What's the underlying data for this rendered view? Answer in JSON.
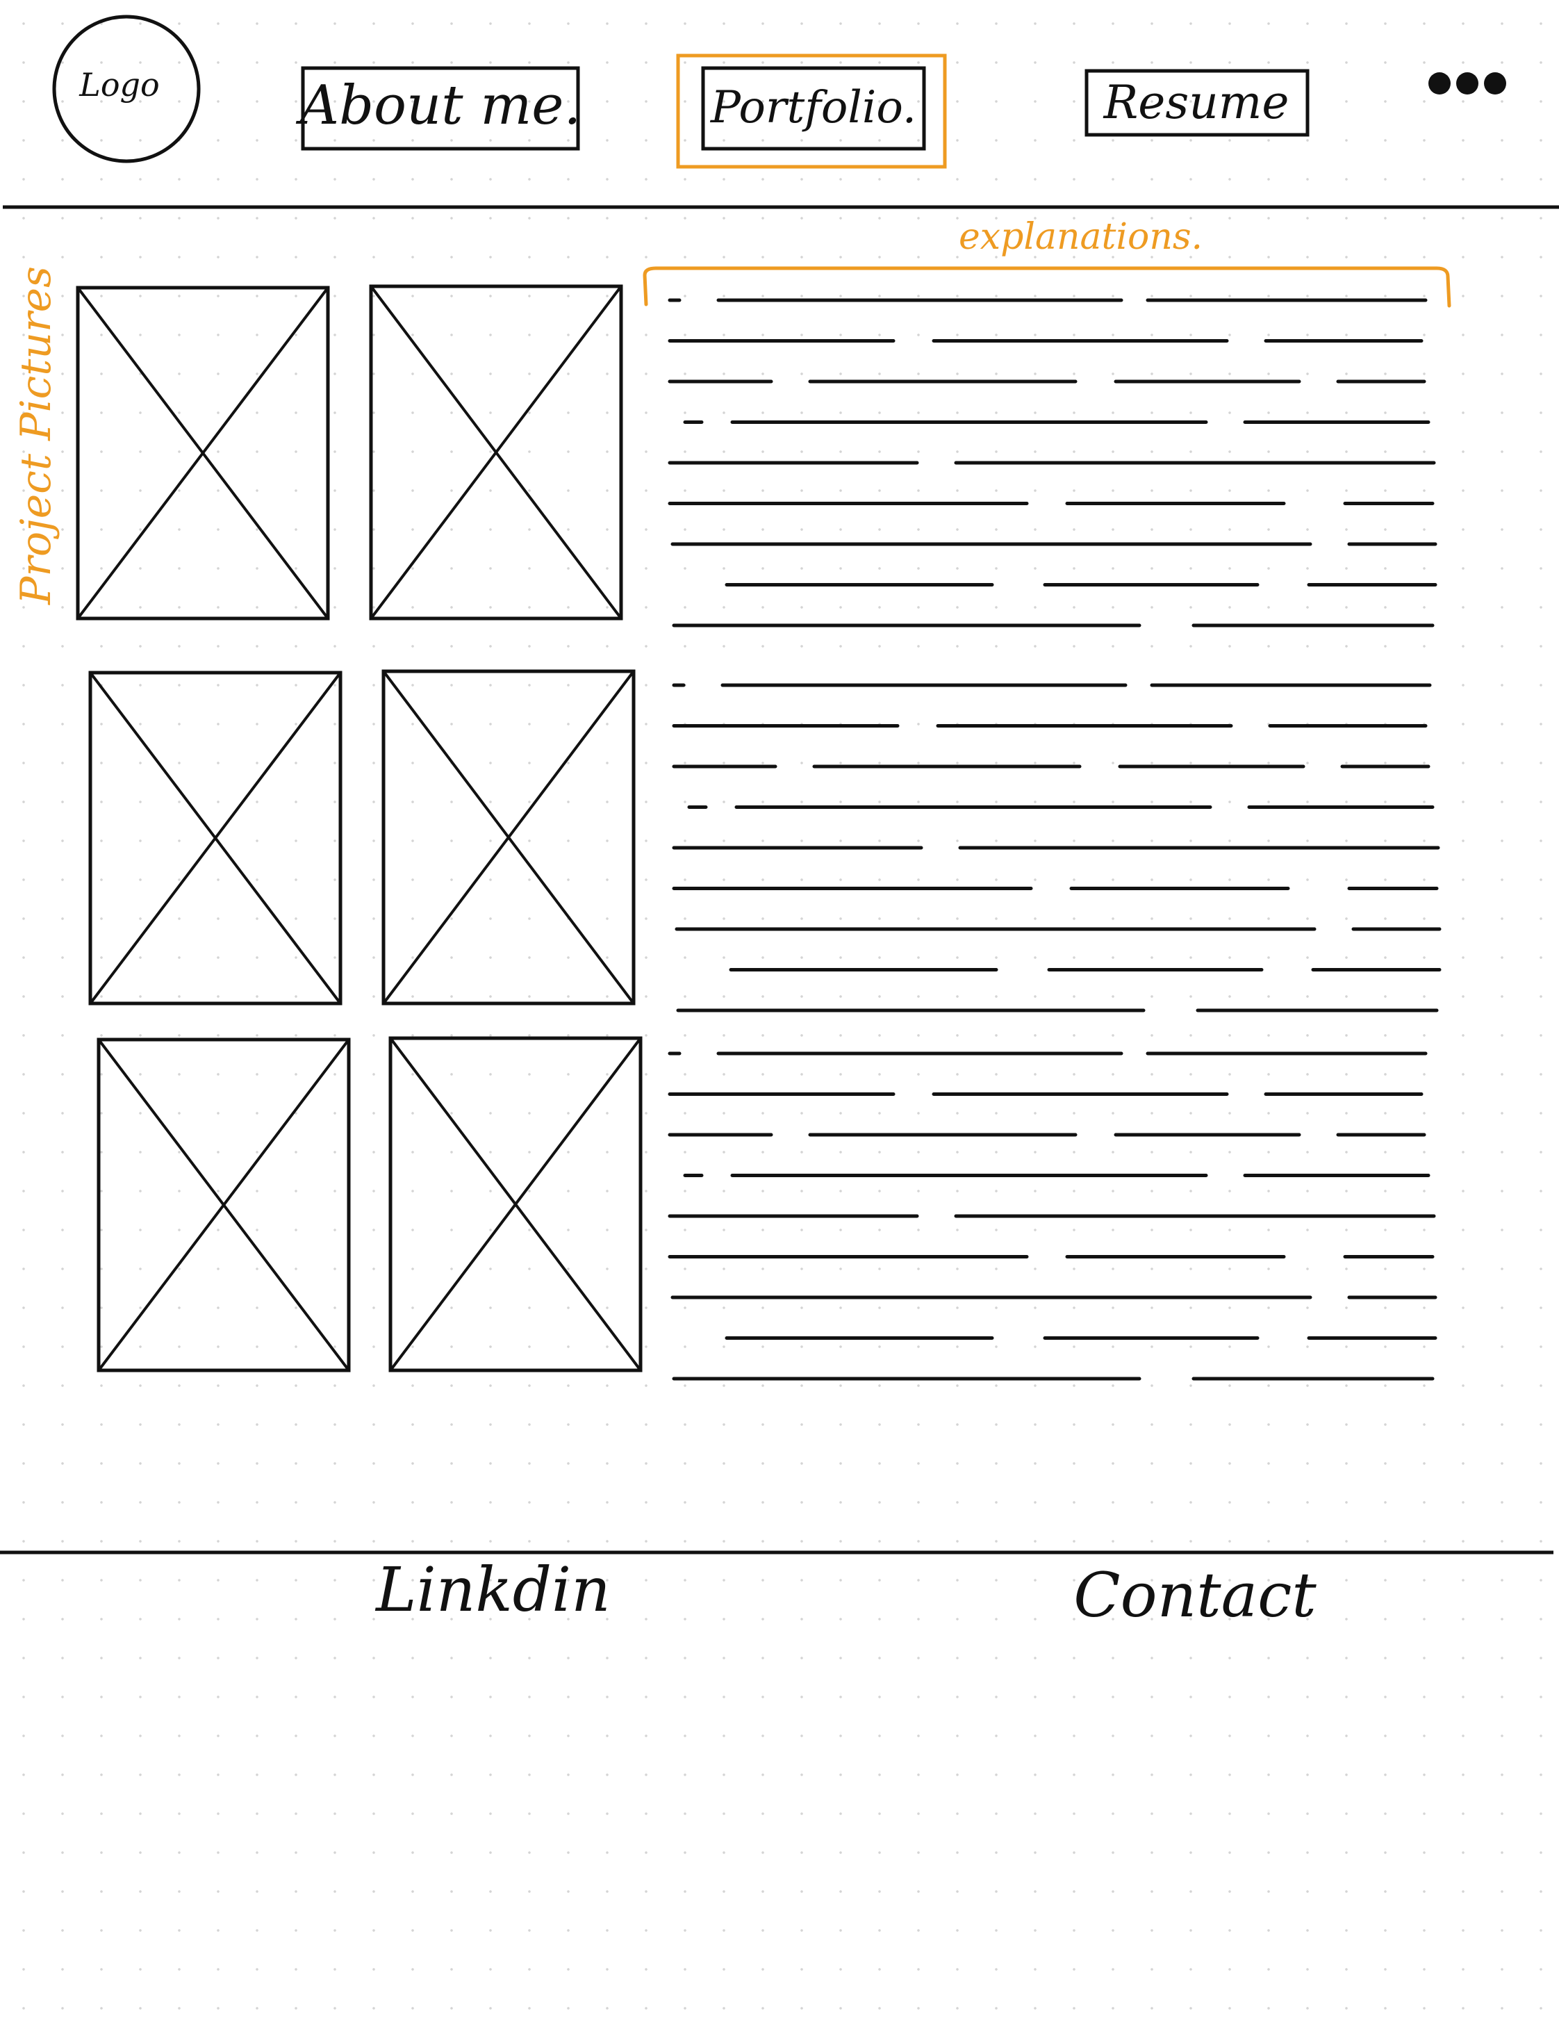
{
  "colors": {
    "ink": "#111111",
    "accent": "#ee9b22",
    "paper": "#ffffff",
    "dot": "#d4d4d4"
  },
  "header": {
    "logo": "Logo",
    "nav": [
      {
        "label": "About me."
      },
      {
        "label": "Portfolio.",
        "highlighted": true
      },
      {
        "label": "Resume"
      }
    ],
    "more_icon": "more-horizontal-icon"
  },
  "annotations": {
    "pictures": "Project Pictures",
    "explanations": "explanations."
  },
  "main": {
    "picture_count": 6,
    "picture_icon": "image-placeholder-icon",
    "text_block_count": 3
  },
  "footer": {
    "links": [
      "Linkdin",
      "Contact"
    ]
  }
}
